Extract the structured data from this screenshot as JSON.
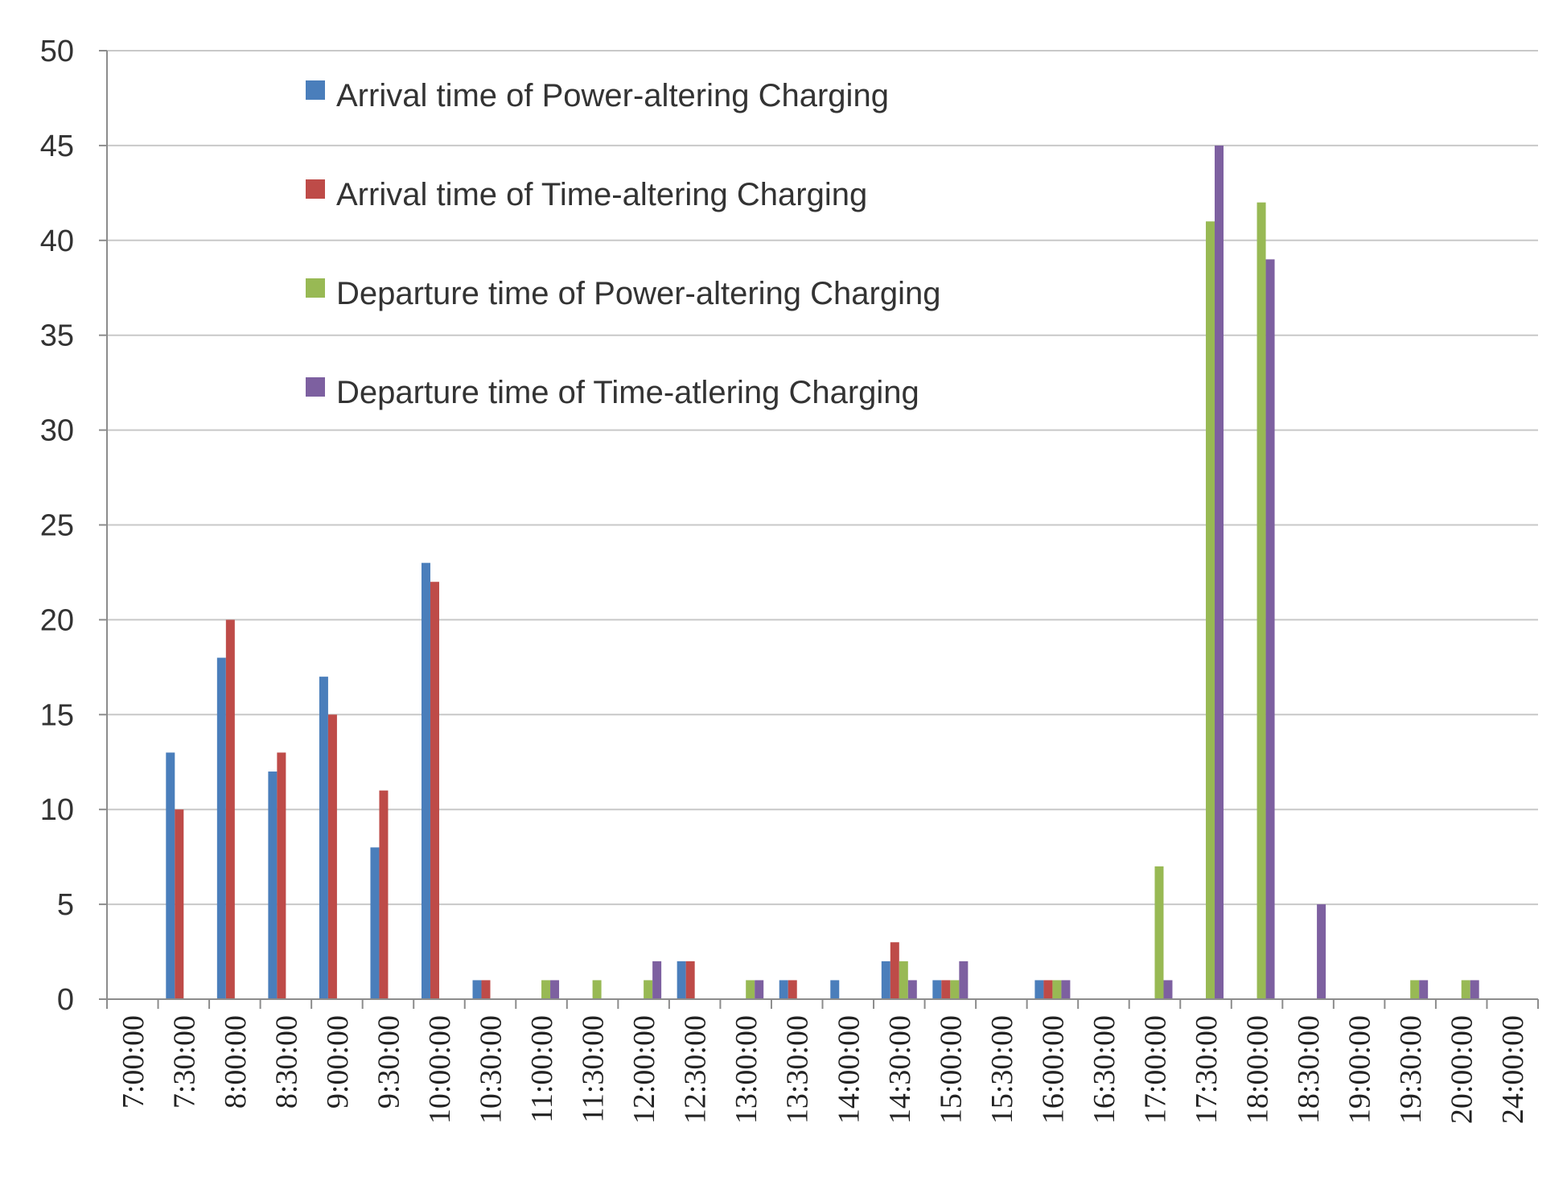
{
  "chart_data": {
    "type": "bar",
    "title": "",
    "xlabel": "",
    "ylabel": "",
    "ylim": [
      0,
      50
    ],
    "yticks": [
      0,
      5,
      10,
      15,
      20,
      25,
      30,
      35,
      40,
      45,
      50
    ],
    "grid": true,
    "legend_position": "top-left",
    "categories": [
      "7:00:00",
      "7:30:00",
      "8:00:00",
      "8:30:00",
      "9:00:00",
      "9:30:00",
      "10:00:00",
      "10:30:00",
      "11:00:00",
      "11:30:00",
      "12:00:00",
      "12:30:00",
      "13:00:00",
      "13:30:00",
      "14:00:00",
      "14:30:00",
      "15:00:00",
      "15:30:00",
      "16:00:00",
      "16:30:00",
      "17:00:00",
      "17:30:00",
      "18:00:00",
      "18:30:00",
      "19:00:00",
      "19:30:00",
      "20:00:00",
      "24:00:00"
    ],
    "series": [
      {
        "name": "Arrival time of Power-altering Charging",
        "color": "#4a7ebb",
        "values": [
          0,
          13,
          18,
          12,
          17,
          8,
          23,
          1,
          0,
          0,
          0,
          2,
          0,
          1,
          1,
          2,
          1,
          0,
          1,
          0,
          0,
          0,
          0,
          0,
          0,
          0,
          0,
          0
        ]
      },
      {
        "name": "Arrival time of Time-altering Charging",
        "color": "#be4b48",
        "values": [
          0,
          10,
          20,
          13,
          15,
          11,
          22,
          1,
          0,
          0,
          0,
          2,
          0,
          1,
          0,
          3,
          1,
          0,
          1,
          0,
          0,
          0,
          0,
          0,
          0,
          0,
          0,
          0
        ]
      },
      {
        "name": "Departure time of Power-altering Charging",
        "color": "#98b954",
        "values": [
          0,
          0,
          0,
          0,
          0,
          0,
          0,
          0,
          1,
          1,
          1,
          0,
          1,
          0,
          0,
          2,
          1,
          0,
          1,
          0,
          7,
          41,
          42,
          0,
          0,
          1,
          1,
          0
        ]
      },
      {
        "name": "Departure time of Time-atlering Charging",
        "color": "#7d60a0",
        "values": [
          0,
          0,
          0,
          0,
          0,
          0,
          0,
          0,
          1,
          0,
          2,
          0,
          1,
          0,
          0,
          1,
          2,
          0,
          1,
          0,
          1,
          45,
          39,
          5,
          0,
          1,
          1,
          0
        ]
      }
    ]
  }
}
